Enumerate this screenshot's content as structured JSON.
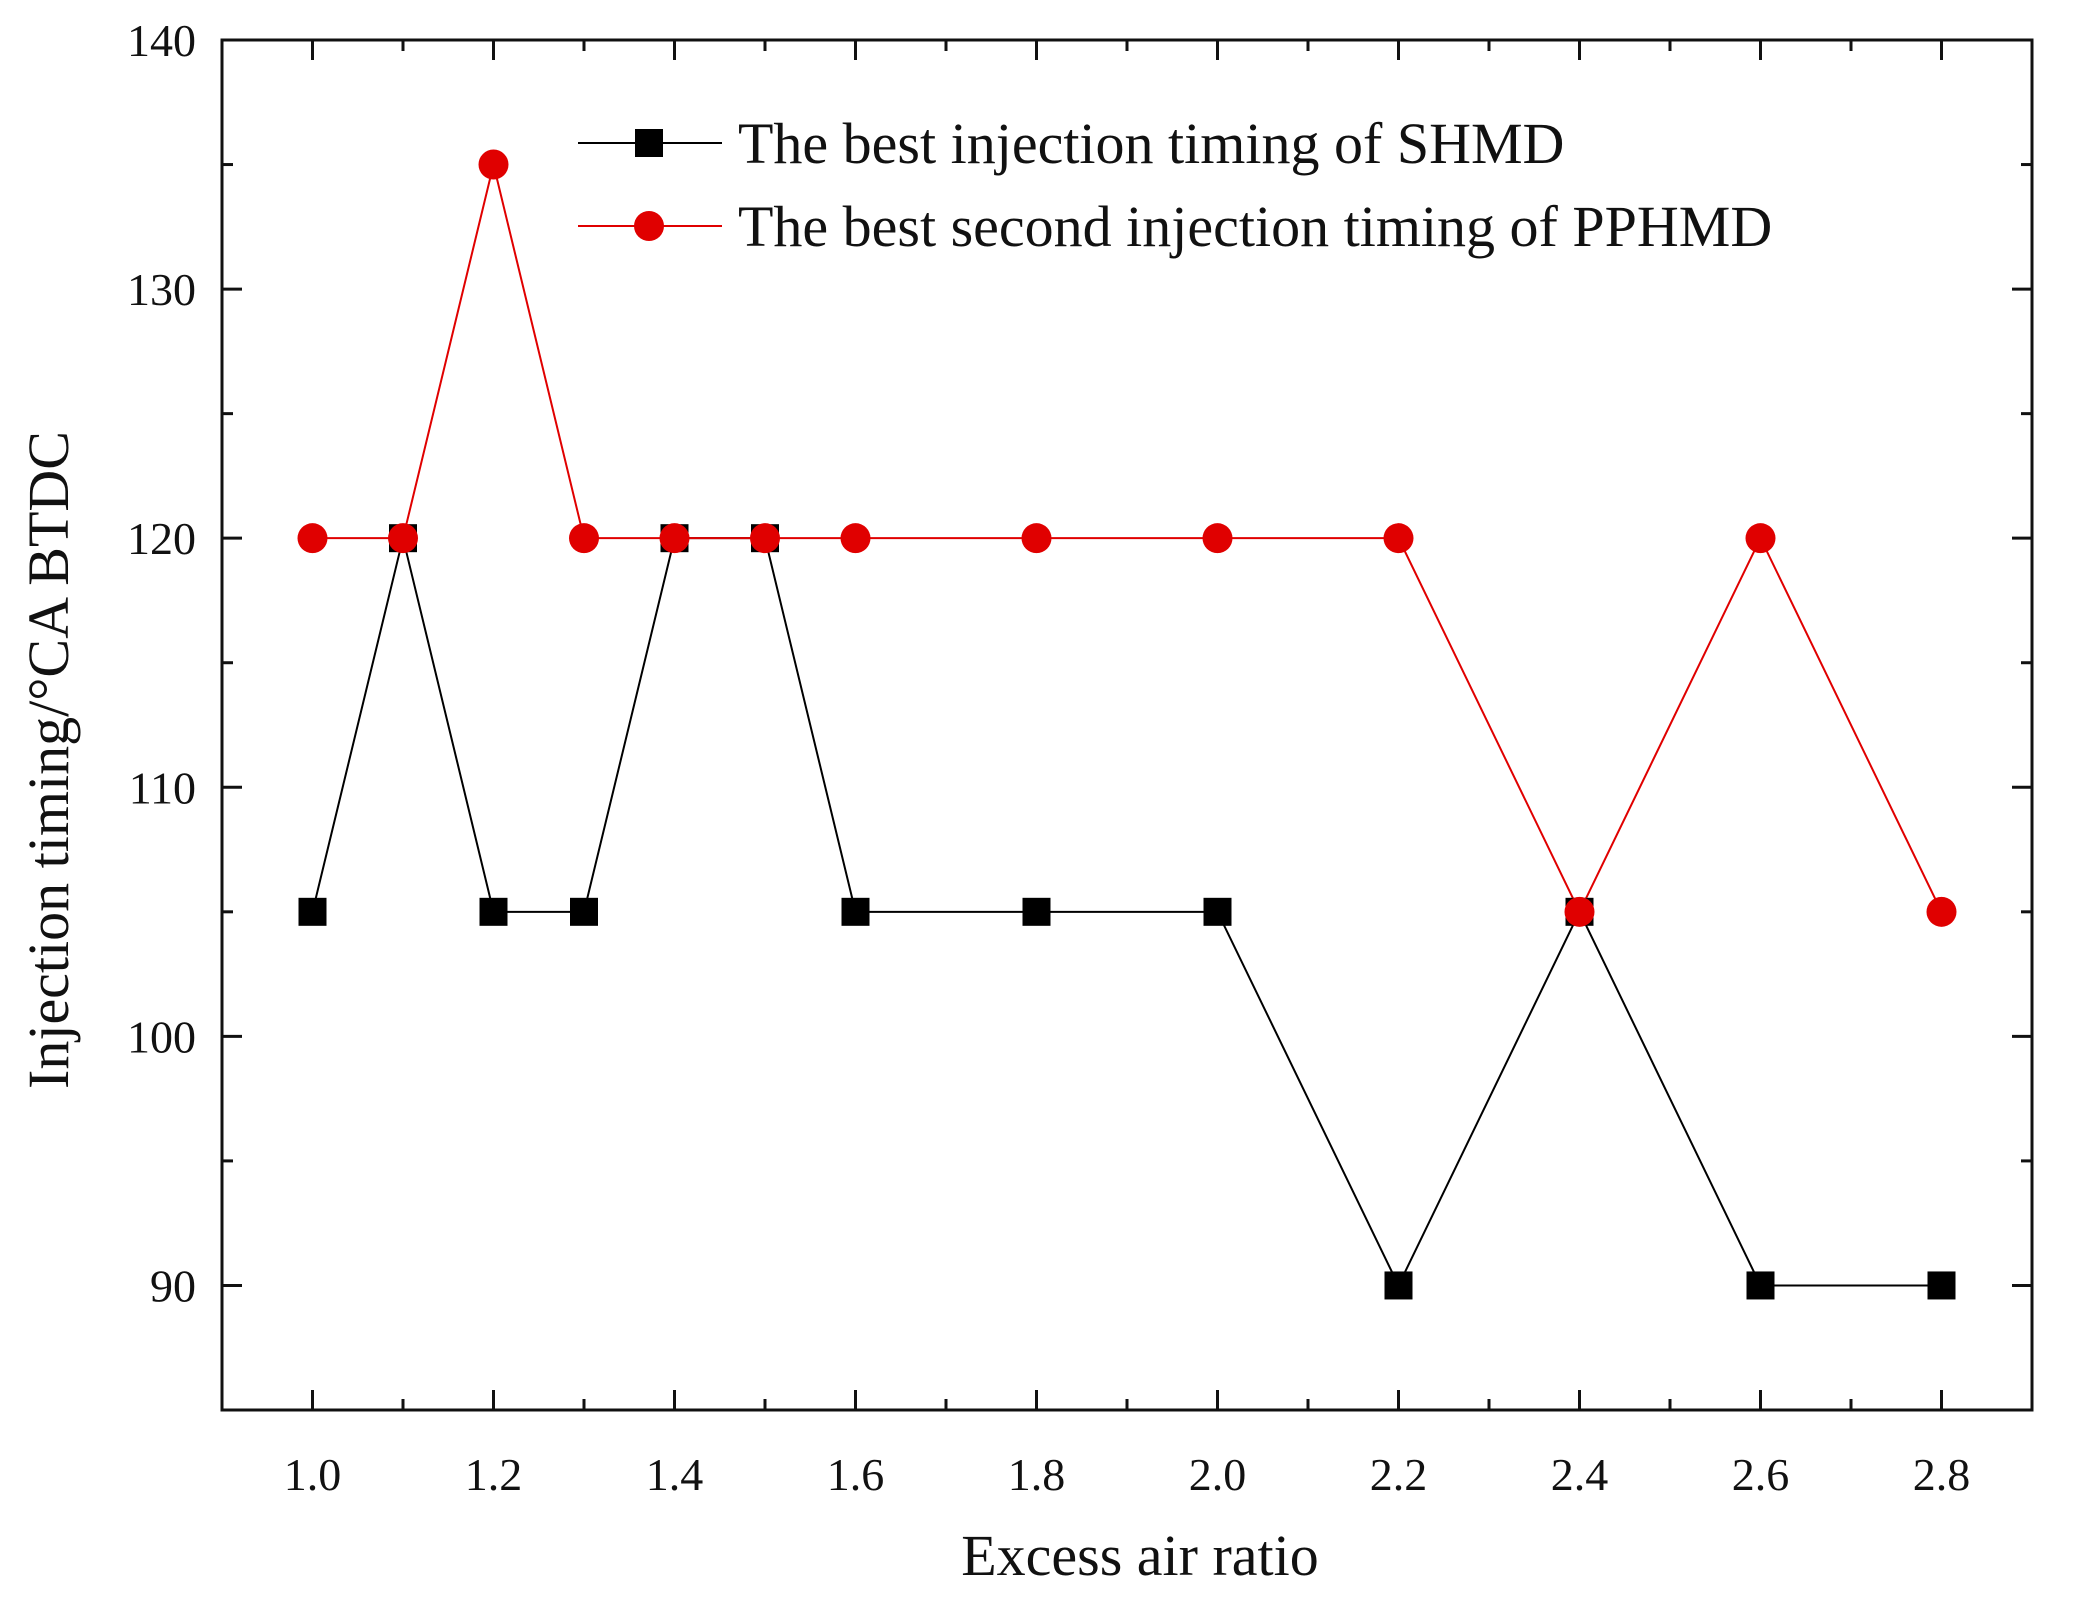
{
  "chart_data": {
    "type": "line",
    "title": "",
    "xlabel": "Excess air ratio",
    "ylabel": "Injection timing/°CA BTDC",
    "xlim": [
      0.9,
      2.9
    ],
    "ylim": [
      85,
      140
    ],
    "x_ticks": [
      "1.0",
      "1.2",
      "1.4",
      "1.6",
      "1.8",
      "2.0",
      "2.2",
      "2.4",
      "2.6",
      "2.8"
    ],
    "y_ticks": [
      "90",
      "100",
      "110",
      "120",
      "130",
      "140"
    ],
    "legend_position": "top-center",
    "grid": false,
    "x": [
      1.0,
      1.1,
      1.2,
      1.3,
      1.4,
      1.5,
      1.6,
      1.8,
      2.0,
      2.2,
      2.4,
      2.6,
      2.8
    ],
    "series": [
      {
        "name": "The best injection timing of SHMD",
        "color": "#000000",
        "marker": "square",
        "values": [
          105,
          120,
          105,
          105,
          120,
          120,
          105,
          105,
          105,
          90,
          105,
          90,
          90
        ]
      },
      {
        "name": "The best second injection timing of PPHMD",
        "color": "#e00000",
        "marker": "circle",
        "values": [
          120,
          120,
          135,
          120,
          120,
          120,
          120,
          120,
          120,
          120,
          105,
          120,
          105
        ]
      }
    ]
  }
}
